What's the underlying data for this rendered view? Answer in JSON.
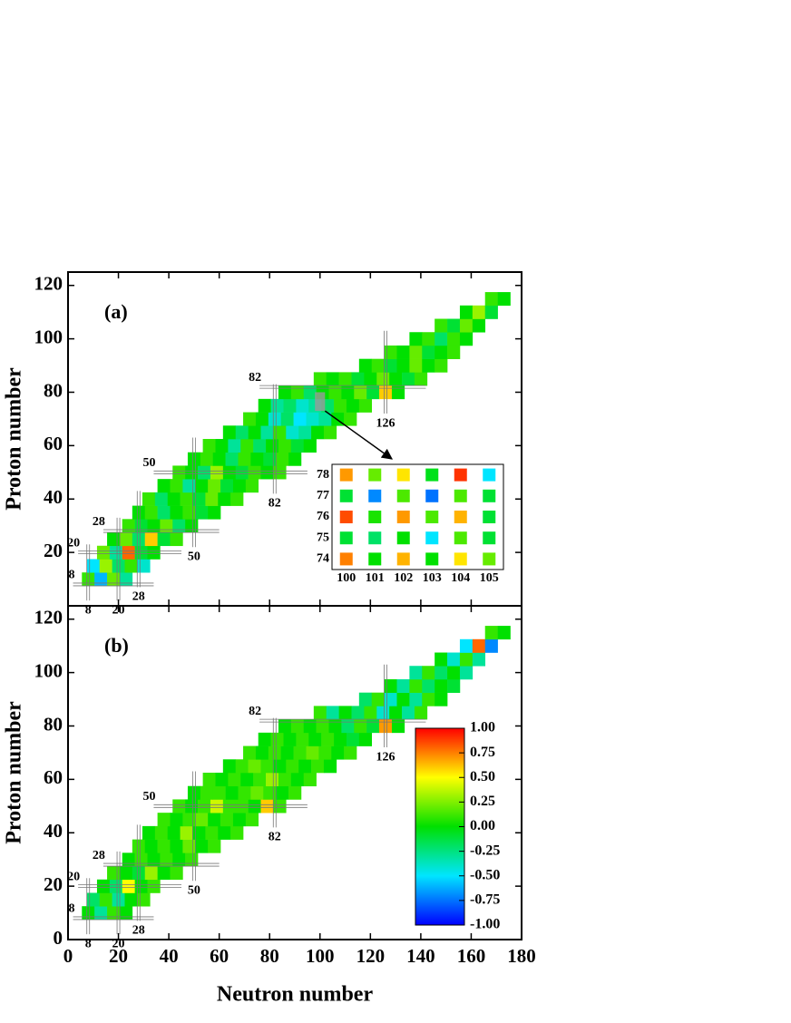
{
  "chart_data": [
    {
      "type": "heatmap",
      "panel_label": "(a)",
      "y_label": "Proton number",
      "xlim": [
        0,
        180
      ],
      "ylim": [
        0,
        125
      ],
      "yticks": [
        20,
        40,
        60,
        80,
        100,
        120
      ],
      "n_step": 5,
      "z_step": 5,
      "magic": {
        "n": [
          8,
          20,
          28,
          50,
          82,
          126
        ],
        "z": [
          8,
          20,
          28,
          50,
          82
        ]
      },
      "rows": [
        {
          "z": 10,
          "n_start": 8,
          "values": [
            0.1,
            -0.6,
            0.2,
            -0.3
          ]
        },
        {
          "z": 15,
          "n_start": 10,
          "values": [
            -0.5,
            0.3,
            -0.2,
            0.1,
            -0.4
          ]
        },
        {
          "z": 20,
          "n_start": 14,
          "values": [
            0.2,
            -0.3,
            0.8,
            -0.1,
            0.0
          ]
        },
        {
          "z": 25,
          "n_start": 18,
          "values": [
            0.0,
            0.2,
            -0.2,
            0.6,
            -0.1,
            0.1
          ]
        },
        {
          "z": 30,
          "n_start": 24,
          "values": [
            0.1,
            -0.1,
            0.0,
            0.2,
            -0.2,
            0.0
          ]
        },
        {
          "z": 35,
          "n_start": 28,
          "values": [
            0.0,
            0.1,
            -0.2,
            0.0,
            0.1,
            -0.1,
            0.0
          ]
        },
        {
          "z": 40,
          "n_start": 32,
          "values": [
            0.1,
            -0.2,
            0.0,
            0.1,
            -0.1,
            0.2,
            0.0,
            0.1
          ]
        },
        {
          "z": 45,
          "n_start": 38,
          "values": [
            0.0,
            0.1,
            -0.3,
            0.0,
            0.2,
            -0.1,
            0.0,
            0.1
          ]
        },
        {
          "z": 50,
          "n_start": 44,
          "values": [
            0.1,
            0.0,
            -0.2,
            0.3,
            0.0,
            -0.1,
            0.1,
            0.0,
            0.1
          ]
        },
        {
          "z": 55,
          "n_start": 50,
          "values": [
            0.0,
            0.1,
            0.0,
            -0.2,
            0.1,
            0.0,
            -0.1,
            0.1,
            0.0
          ]
        },
        {
          "z": 60,
          "n_start": 56,
          "values": [
            0.1,
            0.0,
            -0.3,
            0.1,
            -0.2,
            0.0,
            0.1,
            -0.1,
            0.0
          ]
        },
        {
          "z": 65,
          "n_start": 64,
          "values": [
            0.0,
            -0.2,
            0.0,
            -0.3,
            0.1,
            -0.4,
            -0.3,
            0.0,
            0.1
          ]
        },
        {
          "z": 70,
          "n_start": 72,
          "values": [
            0.1,
            0.0,
            -0.4,
            -0.2,
            -0.5,
            -0.4,
            -0.3,
            0.0,
            0.1
          ]
        },
        {
          "z": 75,
          "n_start": 78,
          "values": [
            0.0,
            -0.3,
            -0.2,
            -0.4,
            -0.3,
            -0.2,
            0.1,
            0.0,
            0.1
          ]
        },
        {
          "z": 80,
          "n_start": 86,
          "values": [
            0.0,
            0.1,
            -0.2,
            0.0,
            0.1,
            0.0,
            0.2,
            -0.1,
            0.6,
            0.0
          ]
        },
        {
          "z": 85,
          "n_start": 100,
          "values": [
            0.1,
            0.0,
            0.1,
            -0.1,
            0.0,
            0.2,
            0.0,
            -0.1,
            0.1
          ]
        },
        {
          "z": 90,
          "n_start": 118,
          "values": [
            0.0,
            0.1,
            -0.1,
            0.0,
            0.2,
            0.0,
            0.1
          ]
        },
        {
          "z": 95,
          "n_start": 128,
          "values": [
            0.1,
            0.0,
            0.2,
            -0.1,
            0.0,
            0.1
          ]
        },
        {
          "z": 100,
          "n_start": 138,
          "values": [
            0.0,
            0.1,
            -0.2,
            0.1,
            0.0
          ]
        },
        {
          "z": 105,
          "n_start": 148,
          "values": [
            0.1,
            -0.1,
            0.2,
            0.0
          ]
        },
        {
          "z": 110,
          "n_start": 158,
          "values": [
            0.0,
            0.3,
            -0.1
          ]
        },
        {
          "z": 115,
          "n_start": 168,
          "values": [
            0.1,
            0.0
          ]
        }
      ],
      "inset": {
        "x_categories": [
          100,
          101,
          102,
          103,
          104,
          105
        ],
        "y_categories": [
          78,
          77,
          76,
          75,
          74
        ],
        "values": [
          [
            0.7,
            0.2,
            0.55,
            -0.05,
            0.9,
            -0.5
          ],
          [
            -0.1,
            -0.7,
            0.15,
            -0.75,
            0.15,
            -0.1
          ],
          [
            0.85,
            0.05,
            0.7,
            0.15,
            0.65,
            -0.1
          ],
          [
            -0.1,
            -0.2,
            0.0,
            -0.5,
            0.15,
            -0.1
          ],
          [
            0.75,
            0.0,
            0.65,
            0.0,
            0.55,
            0.2
          ]
        ]
      }
    },
    {
      "type": "heatmap",
      "panel_label": "(b)",
      "y_label": "Proton number",
      "x_label": "Neutron number",
      "xlim": [
        0,
        180
      ],
      "ylim": [
        0,
        125
      ],
      "xticks": [
        0,
        20,
        40,
        60,
        80,
        100,
        120,
        140,
        160,
        180
      ],
      "yticks": [
        0,
        20,
        40,
        60,
        80,
        100,
        120
      ],
      "n_step": 5,
      "z_step": 5,
      "magic": {
        "n": [
          8,
          20,
          28,
          50,
          82,
          126
        ],
        "z": [
          8,
          20,
          28,
          50,
          82
        ]
      },
      "rows": [
        {
          "z": 10,
          "n_start": 8,
          "values": [
            0.0,
            -0.3,
            0.1,
            0.0
          ]
        },
        {
          "z": 15,
          "n_start": 10,
          "values": [
            -0.2,
            0.1,
            -0.3,
            0.0,
            0.1
          ]
        },
        {
          "z": 20,
          "n_start": 14,
          "values": [
            0.0,
            -0.2,
            0.5,
            0.0,
            0.1
          ]
        },
        {
          "z": 25,
          "n_start": 18,
          "values": [
            0.1,
            0.0,
            -0.1,
            0.3,
            0.0,
            0.1
          ]
        },
        {
          "z": 30,
          "n_start": 24,
          "values": [
            0.0,
            0.1,
            0.0,
            0.1,
            0.0,
            0.1
          ]
        },
        {
          "z": 35,
          "n_start": 28,
          "values": [
            0.1,
            0.0,
            0.1,
            0.0,
            0.2,
            0.0,
            0.1
          ]
        },
        {
          "z": 40,
          "n_start": 32,
          "values": [
            0.0,
            0.1,
            0.0,
            0.3,
            0.0,
            0.1,
            0.0,
            0.1
          ]
        },
        {
          "z": 45,
          "n_start": 38,
          "values": [
            0.1,
            0.0,
            0.1,
            0.2,
            0.0,
            0.1,
            0.0,
            0.1
          ]
        },
        {
          "z": 50,
          "n_start": 44,
          "values": [
            0.1,
            0.0,
            0.1,
            0.4,
            0.1,
            0.1,
            0.0,
            0.6,
            0.1
          ]
        },
        {
          "z": 55,
          "n_start": 50,
          "values": [
            0.0,
            0.1,
            0.1,
            0.0,
            0.1,
            0.2,
            0.1,
            0.0,
            0.1
          ]
        },
        {
          "z": 60,
          "n_start": 56,
          "values": [
            0.1,
            0.0,
            0.1,
            0.0,
            0.1,
            0.3,
            0.1,
            0.0,
            0.1
          ]
        },
        {
          "z": 65,
          "n_start": 64,
          "values": [
            0.0,
            0.1,
            0.2,
            0.1,
            0.0,
            0.1,
            0.0,
            0.1,
            0.0
          ]
        },
        {
          "z": 70,
          "n_start": 72,
          "values": [
            0.1,
            0.0,
            0.1,
            0.0,
            0.1,
            0.2,
            0.1,
            0.0,
            0.1
          ]
        },
        {
          "z": 75,
          "n_start": 78,
          "values": [
            0.0,
            0.1,
            0.0,
            0.1,
            0.0,
            0.1,
            0.0,
            -0.1,
            0.0
          ]
        },
        {
          "z": 80,
          "n_start": 86,
          "values": [
            0.0,
            0.1,
            0.0,
            0.1,
            0.0,
            -0.2,
            0.1,
            -0.1,
            0.7,
            0.0
          ]
        },
        {
          "z": 85,
          "n_start": 100,
          "values": [
            0.1,
            -0.3,
            0.0,
            -0.2,
            0.1,
            -0.4,
            0.0,
            -0.3,
            0.1
          ]
        },
        {
          "z": 90,
          "n_start": 118,
          "values": [
            -0.2,
            0.1,
            -0.4,
            0.0,
            -0.3,
            0.1,
            0.0
          ]
        },
        {
          "z": 95,
          "n_start": 128,
          "values": [
            0.0,
            -0.3,
            0.1,
            -0.2,
            0.0,
            -0.1
          ]
        },
        {
          "z": 100,
          "n_start": 138,
          "values": [
            -0.3,
            0.1,
            -0.2,
            0.0,
            -0.3
          ]
        },
        {
          "z": 105,
          "n_start": 148,
          "values": [
            0.0,
            -0.4,
            0.1,
            -0.3
          ]
        },
        {
          "z": 110,
          "n_start": 158,
          "values": [
            -0.5,
            0.8,
            -0.7
          ]
        },
        {
          "z": 115,
          "n_start": 168,
          "values": [
            0.1,
            0.0
          ]
        }
      ],
      "zlim": [
        -1,
        1
      ],
      "colorscale": [
        "#0000ff",
        "#00e5ff",
        "#00e000",
        "#ffff00",
        "#ff0000"
      ],
      "colorbar_ticks": [
        {
          "value": 1,
          "label": "1.00"
        },
        {
          "value": 0.75,
          "label": "0.75"
        },
        {
          "value": 0.5,
          "label": "0.50"
        },
        {
          "value": 0.25,
          "label": "0.25"
        },
        {
          "value": 0,
          "label": "0.00"
        },
        {
          "value": -0.25,
          "label": "-0.25"
        },
        {
          "value": -0.5,
          "label": "-0.50"
        },
        {
          "value": -0.75,
          "label": "-0.75"
        },
        {
          "value": -1,
          "label": "-1.00"
        }
      ]
    }
  ]
}
